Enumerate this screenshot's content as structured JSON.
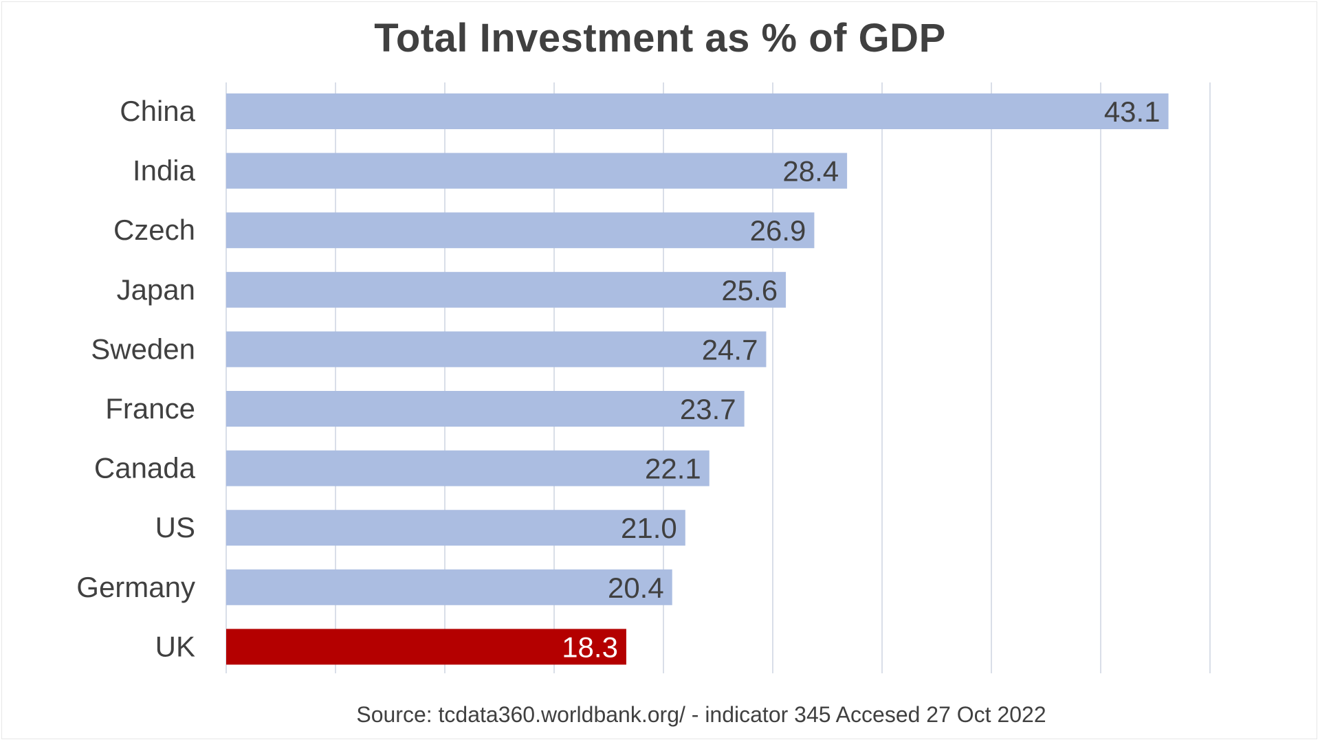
{
  "chart_data": {
    "type": "bar",
    "orientation": "horizontal",
    "title": "Total Investment as % of GDP",
    "categories": [
      "China",
      "India",
      "Czech",
      "Japan",
      "Sweden",
      "France",
      "Canada",
      "US",
      "Germany",
      "UK"
    ],
    "values": [
      43.1,
      28.4,
      26.9,
      25.6,
      24.7,
      23.7,
      22.1,
      21.0,
      20.4,
      18.3
    ],
    "data_labels": [
      "43.1",
      "28.4",
      "26.9",
      "25.6",
      "24.7",
      "23.7",
      "22.1",
      "21.0",
      "20.4",
      "18.3"
    ],
    "highlight_category": "UK",
    "xlim": [
      0,
      45
    ],
    "gridlines": true,
    "legend": "none",
    "xlabel": "",
    "ylabel": ""
  },
  "colors": {
    "bar": "#abbde1",
    "highlight": "#b40000",
    "grid": "#d9dee8",
    "text": "#404040",
    "label_on_highlight": "#ffffff"
  },
  "source": "Source: tcdata360.worldbank.org/ - indicator 345 Accesed 27 Oct 2022"
}
